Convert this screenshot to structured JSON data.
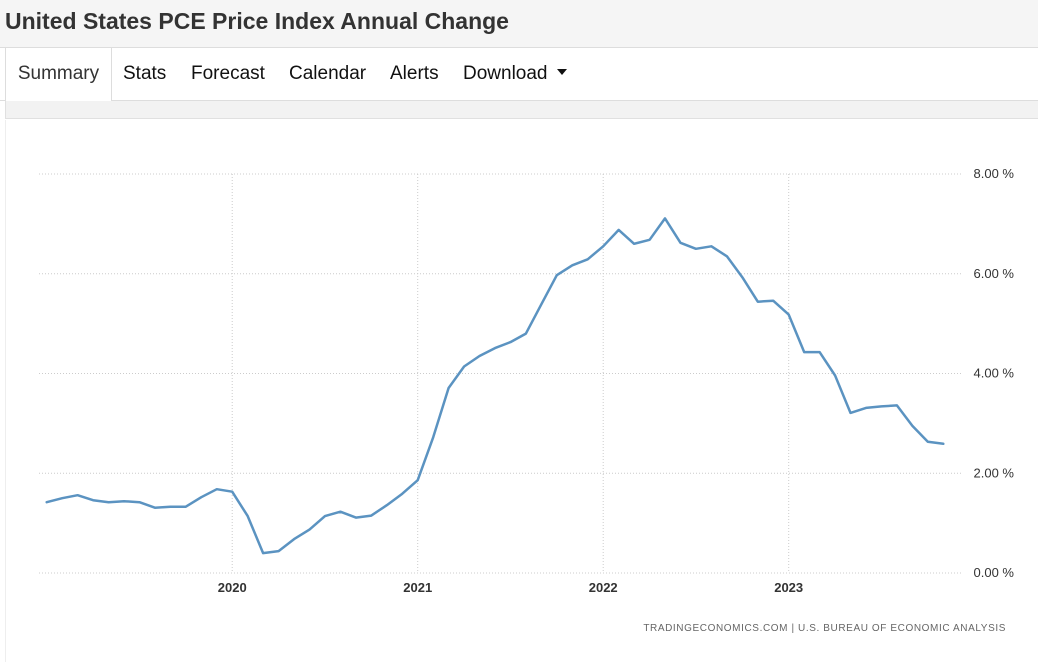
{
  "header": {
    "title": "United States PCE Price Index Annual Change"
  },
  "tabs": [
    {
      "label": "Summary",
      "active": true
    },
    {
      "label": "Stats"
    },
    {
      "label": "Forecast"
    },
    {
      "label": "Calendar"
    },
    {
      "label": "Alerts"
    },
    {
      "label": "Download",
      "dropdown": true
    }
  ],
  "colors": {
    "line": "#5b93c1",
    "grid": "#cccccc",
    "tick_text": "#333333",
    "source_text": "#666666"
  },
  "chart_data": {
    "type": "line",
    "title": "",
    "xlabel": "",
    "ylabel": "",
    "x_tick_labels": [
      "2020",
      "2021",
      "2022",
      "2023"
    ],
    "y_tick_labels": [
      "0.00 %",
      "2.00 %",
      "4.00 %",
      "6.00 %",
      "8.00 %"
    ],
    "ylim": [
      0,
      8
    ],
    "xlim": [
      "2019-01",
      "2023-11"
    ],
    "grid": true,
    "legend": "none",
    "source": "TRADINGECONOMICS.COM  |  U.S. BUREAU OF ECONOMIC ANALYSIS",
    "series": [
      {
        "x": [
          "2019-01",
          "2019-02",
          "2019-03",
          "2019-04",
          "2019-05",
          "2019-06",
          "2019-07",
          "2019-08",
          "2019-09",
          "2019-10",
          "2019-11",
          "2019-12",
          "2020-01",
          "2020-02",
          "2020-03",
          "2020-04",
          "2020-05",
          "2020-06",
          "2020-07",
          "2020-08",
          "2020-09",
          "2020-10",
          "2020-11",
          "2020-12",
          "2021-01",
          "2021-02",
          "2021-03",
          "2021-04",
          "2021-05",
          "2021-06",
          "2021-07",
          "2021-08",
          "2021-09",
          "2021-10",
          "2021-11",
          "2021-12",
          "2022-01",
          "2022-02",
          "2022-03",
          "2022-04",
          "2022-05",
          "2022-06",
          "2022-07",
          "2022-08",
          "2022-09",
          "2022-10",
          "2022-11",
          "2022-12",
          "2023-01",
          "2023-02",
          "2023-03",
          "2023-04",
          "2023-05",
          "2023-06",
          "2023-07",
          "2023-08",
          "2023-09",
          "2023-10",
          "2023-11"
        ],
        "values": [
          1.42,
          1.5,
          1.56,
          1.46,
          1.42,
          1.44,
          1.42,
          1.31,
          1.33,
          1.33,
          1.52,
          1.68,
          1.63,
          1.14,
          0.4,
          0.44,
          0.68,
          0.87,
          1.14,
          1.23,
          1.11,
          1.15,
          1.36,
          1.59,
          1.86,
          2.72,
          3.71,
          4.14,
          4.35,
          4.51,
          4.63,
          4.8,
          5.39,
          5.97,
          6.17,
          6.29,
          6.55,
          6.88,
          6.6,
          6.68,
          7.11,
          6.62,
          6.5,
          6.55,
          6.35,
          5.93,
          5.44,
          5.46,
          5.18,
          4.43,
          4.43,
          3.96,
          3.21,
          3.31,
          3.34,
          3.36,
          2.95,
          2.63,
          2.59
        ]
      }
    ]
  }
}
